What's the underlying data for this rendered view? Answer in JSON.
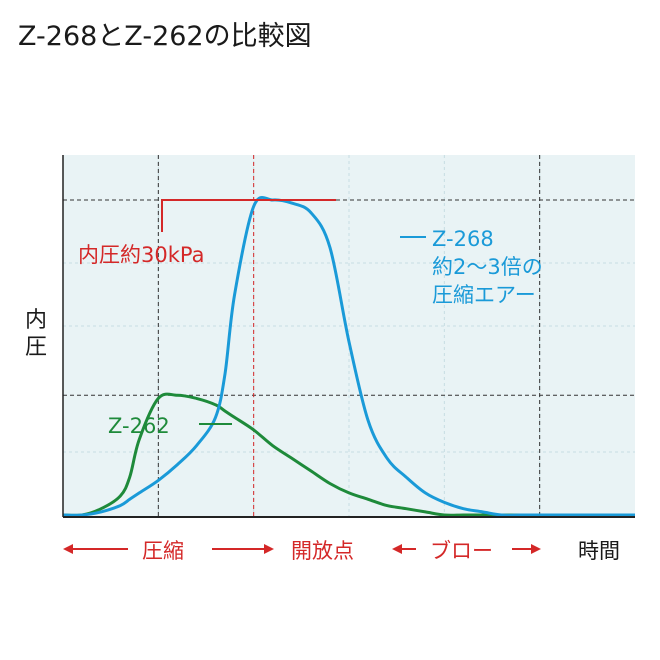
{
  "title": "Z-268とZ-262の比較図",
  "chart_data": {
    "type": "line",
    "ylabel": "内圧",
    "xlabel": "時間",
    "grid": true,
    "x": [
      0,
      0.1,
      0.2,
      0.3,
      0.35,
      0.4,
      0.5,
      0.6,
      0.7,
      0.8,
      0.85,
      0.9,
      1.0,
      1.1,
      1.2,
      1.3,
      1.4,
      1.5,
      1.6,
      1.7,
      1.8,
      1.9,
      2.0,
      2.1,
      2.2,
      2.3,
      2.4,
      2.5,
      2.6,
      2.7,
      2.8,
      3.0
    ],
    "series": [
      {
        "name": "Z-268",
        "color": "#1a9ad8",
        "values": [
          0,
          0,
          0.01,
          0.03,
          0.05,
          0.07,
          0.11,
          0.16,
          0.22,
          0.31,
          0.45,
          0.7,
          0.98,
          1.0,
          0.99,
          0.96,
          0.85,
          0.55,
          0.3,
          0.18,
          0.12,
          0.07,
          0.04,
          0.02,
          0.01,
          0,
          0,
          0,
          0,
          0,
          0,
          0
        ]
      },
      {
        "name": "Z-262",
        "color": "#1e8a3a",
        "values": [
          0,
          0,
          0.02,
          0.06,
          0.12,
          0.24,
          0.37,
          0.38,
          0.37,
          0.35,
          0.33,
          0.31,
          0.27,
          0.22,
          0.18,
          0.14,
          0.1,
          0.07,
          0.05,
          0.03,
          0.02,
          0.01,
          0,
          0,
          0,
          0,
          0,
          0,
          0,
          0,
          0,
          0
        ]
      }
    ],
    "reference_lines": [
      {
        "axis": "y",
        "value": 1.0
      },
      {
        "axis": "y",
        "value": 0.38
      },
      {
        "axis": "x",
        "value": 0.5,
        "color": "#333333"
      },
      {
        "axis": "x",
        "value": 1.0,
        "color": "#d42828"
      },
      {
        "axis": "x",
        "value": 2.5,
        "color": "#333333"
      }
    ],
    "annotations": {
      "pressure_label": "内圧約30kPa",
      "z268_lines": [
        "Z-268",
        "約2〜3倍の",
        "圧縮エアー"
      ],
      "z262_label": "Z-262"
    },
    "phases": [
      {
        "label": "圧縮",
        "color": "#d42828"
      },
      {
        "label": "開放点",
        "color": "#d42828"
      },
      {
        "label": "ブロー",
        "color": "#d42828"
      }
    ]
  }
}
